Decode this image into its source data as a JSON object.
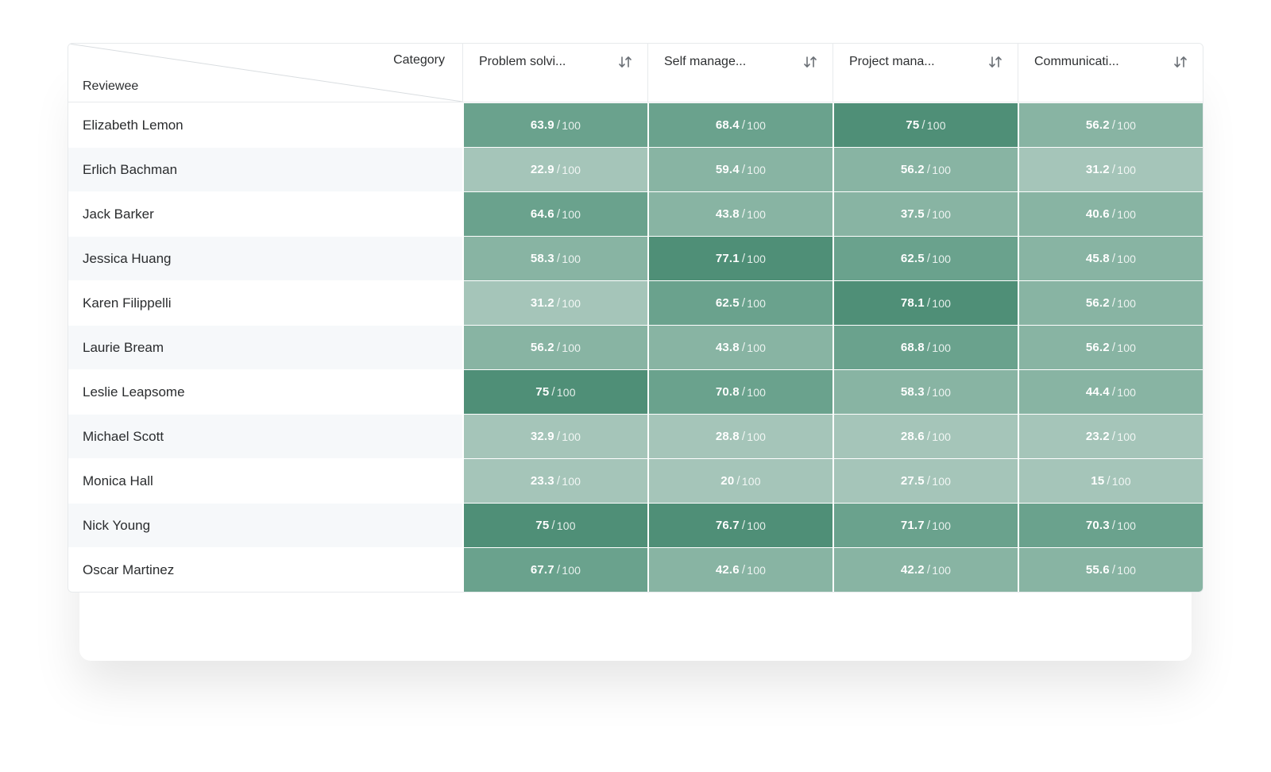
{
  "header": {
    "corner_category_label": "Category",
    "corner_reviewee_label": "Reviewee",
    "diagonal_color": "#d9dde0",
    "columns": [
      {
        "label": "Problem solvi..."
      },
      {
        "label": "Self manage..."
      },
      {
        "label": "Project mana..."
      },
      {
        "label": "Communicati..."
      }
    ]
  },
  "max_label": "100",
  "heat_palette": {
    "low": "#a5c5b9",
    "mid": "#88b4a3",
    "high": "#6aa28d",
    "top": "#4f8f77"
  },
  "color_thresholds": {
    "low_max": 35,
    "mid_max": 60,
    "high_max": 73
  },
  "rows": [
    {
      "name": "Elizabeth Lemon",
      "scores": [
        "63.9",
        "68.4",
        "75",
        "56.2"
      ]
    },
    {
      "name": "Erlich Bachman",
      "scores": [
        "22.9",
        "59.4",
        "56.2",
        "31.2"
      ]
    },
    {
      "name": "Jack Barker",
      "scores": [
        "64.6",
        "43.8",
        "37.5",
        "40.6"
      ]
    },
    {
      "name": "Jessica Huang",
      "scores": [
        "58.3",
        "77.1",
        "62.5",
        "45.8"
      ]
    },
    {
      "name": "Karen Filippelli",
      "scores": [
        "31.2",
        "62.5",
        "78.1",
        "56.2"
      ]
    },
    {
      "name": "Laurie Bream",
      "scores": [
        "56.2",
        "43.8",
        "68.8",
        "56.2"
      ]
    },
    {
      "name": "Leslie Leapsome",
      "scores": [
        "75",
        "70.8",
        "58.3",
        "44.4"
      ]
    },
    {
      "name": "Michael Scott",
      "scores": [
        "32.9",
        "28.8",
        "28.6",
        "23.2"
      ]
    },
    {
      "name": "Monica Hall",
      "scores": [
        "23.3",
        "20",
        "27.5",
        "15"
      ]
    },
    {
      "name": "Nick Young",
      "scores": [
        "75",
        "76.7",
        "71.7",
        "70.3"
      ]
    },
    {
      "name": "Oscar Martinez",
      "scores": [
        "67.7",
        "42.6",
        "42.2",
        "55.6"
      ]
    }
  ],
  "style": {
    "row_border_color": "#ffffff",
    "header_border_color": "#e7eaec",
    "name_font_color": "#2a2c2e",
    "header_font_color": "#2d2f31",
    "sort_icon_color": "#6a6f75",
    "alt_row_bg": "#f6f8fa"
  }
}
